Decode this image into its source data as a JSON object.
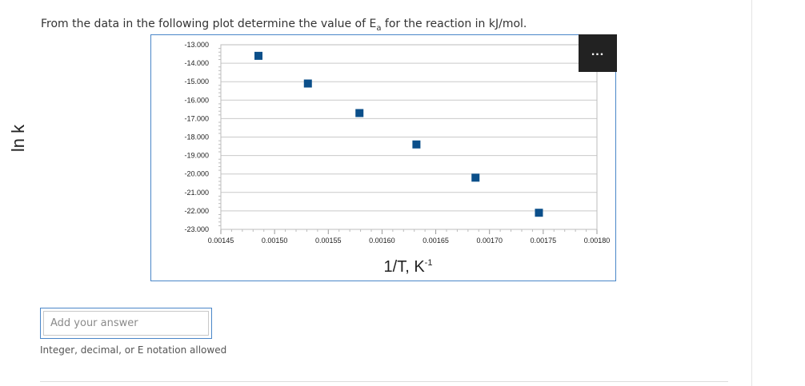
{
  "question": {
    "text_before": "From the data in the following plot determine the value of E",
    "subscript": "a",
    "text_after": " for the reaction in kJ/mol."
  },
  "chart_menu_label": "...",
  "chart_data": {
    "type": "scatter",
    "xlabel_base": "1/T, K",
    "xlabel_sup": "-1",
    "ylabel": "ln k",
    "xlim": [
      0.00145,
      0.0018
    ],
    "ylim": [
      -23.0,
      -13.0
    ],
    "x_ticks": [
      "0.00145",
      "0.00150",
      "0.00155",
      "0.00160",
      "0.00165",
      "0.00170",
      "0.00175",
      "0.00180"
    ],
    "y_ticks": [
      "-13.000",
      "-14.000",
      "-15.000",
      "-16.000",
      "-17.000",
      "-18.000",
      "-19.000",
      "-20.000",
      "-21.000",
      "-22.000",
      "-23.000"
    ],
    "grid": true,
    "marker_color": "#0b4f8a",
    "series": [
      {
        "x": [
          0.001485,
          0.001531,
          0.001579,
          0.001632,
          0.001687,
          0.001746
        ],
        "y": [
          -13.6,
          -15.1,
          -16.7,
          -18.4,
          -20.2,
          -22.1
        ]
      }
    ]
  },
  "answer": {
    "placeholder": "Add your answer",
    "hint": "Integer, decimal, or E notation allowed"
  }
}
